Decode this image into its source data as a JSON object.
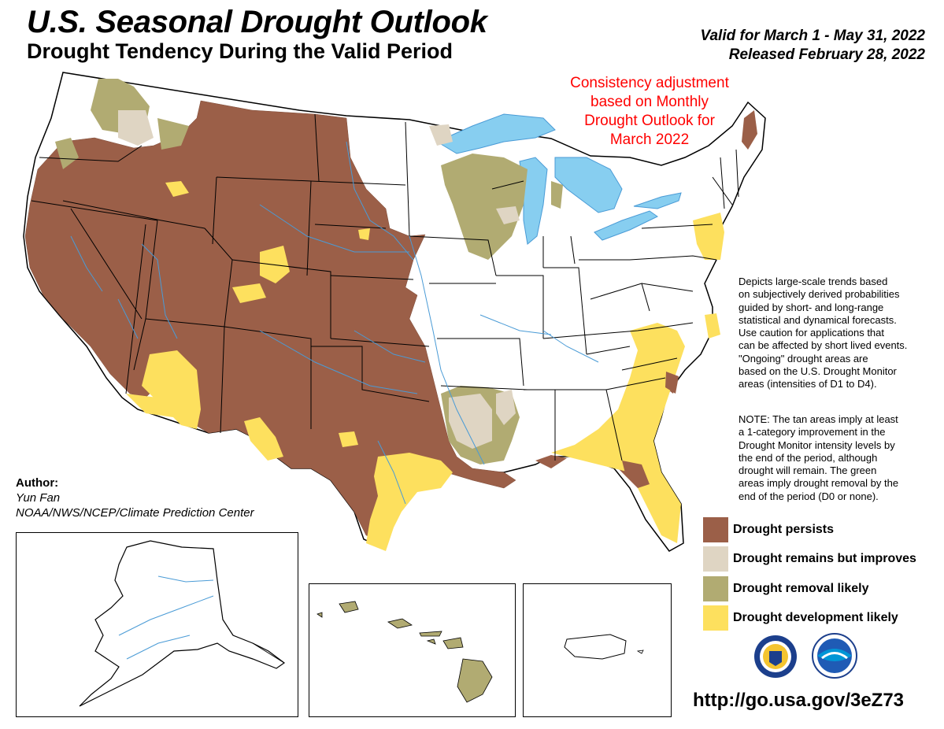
{
  "header": {
    "title": "U.S. Seasonal Drought Outlook",
    "subtitle": "Drought Tendency During the Valid Period",
    "valid": "Valid for March 1 - May 31, 2022",
    "released": "Released February 28, 2022"
  },
  "annotation": {
    "lines": [
      "Consistency adjustment",
      "based on Monthly",
      "Drought Outlook for",
      "March 2022"
    ]
  },
  "description": {
    "lines": [
      "Depicts large-scale trends based",
      "on subjectively derived probabilities",
      "guided by short- and long-range",
      "statistical and dynamical forecasts.",
      "Use caution for applications that",
      "can be affected by short lived events.",
      "\"Ongoing\" drought areas are",
      "based on the U.S. Drought Monitor",
      "areas (intensities of D1 to D4)."
    ]
  },
  "note": {
    "lines": [
      "NOTE: The tan areas imply at least",
      "a 1-category improvement in the",
      "Drought Monitor intensity levels by",
      "the end of the period, although",
      "drought will remain. The green",
      "areas imply drought removal by the",
      "end of the period (D0 or none)."
    ]
  },
  "legend": [
    {
      "label": "Drought persists",
      "color": "#9b5f48"
    },
    {
      "label": "Drought remains but improves",
      "color": "#dfd5c3"
    },
    {
      "label": "Drought removal likely",
      "color": "#b1ab72"
    },
    {
      "label": "Drought development likely",
      "color": "#fde05e"
    }
  ],
  "author": {
    "heading": "Author:",
    "name": "Yun Fan",
    "org": "NOAA/NWS/NCEP/Climate Prediction Center"
  },
  "url": "http://go.usa.gov/3eZ73",
  "colors": {
    "water": "#87cef0",
    "rivers": "#4a9bd6",
    "state_lines": "#000000"
  },
  "logos": [
    "nws-seal-icon",
    "noaa-logo-icon"
  ]
}
